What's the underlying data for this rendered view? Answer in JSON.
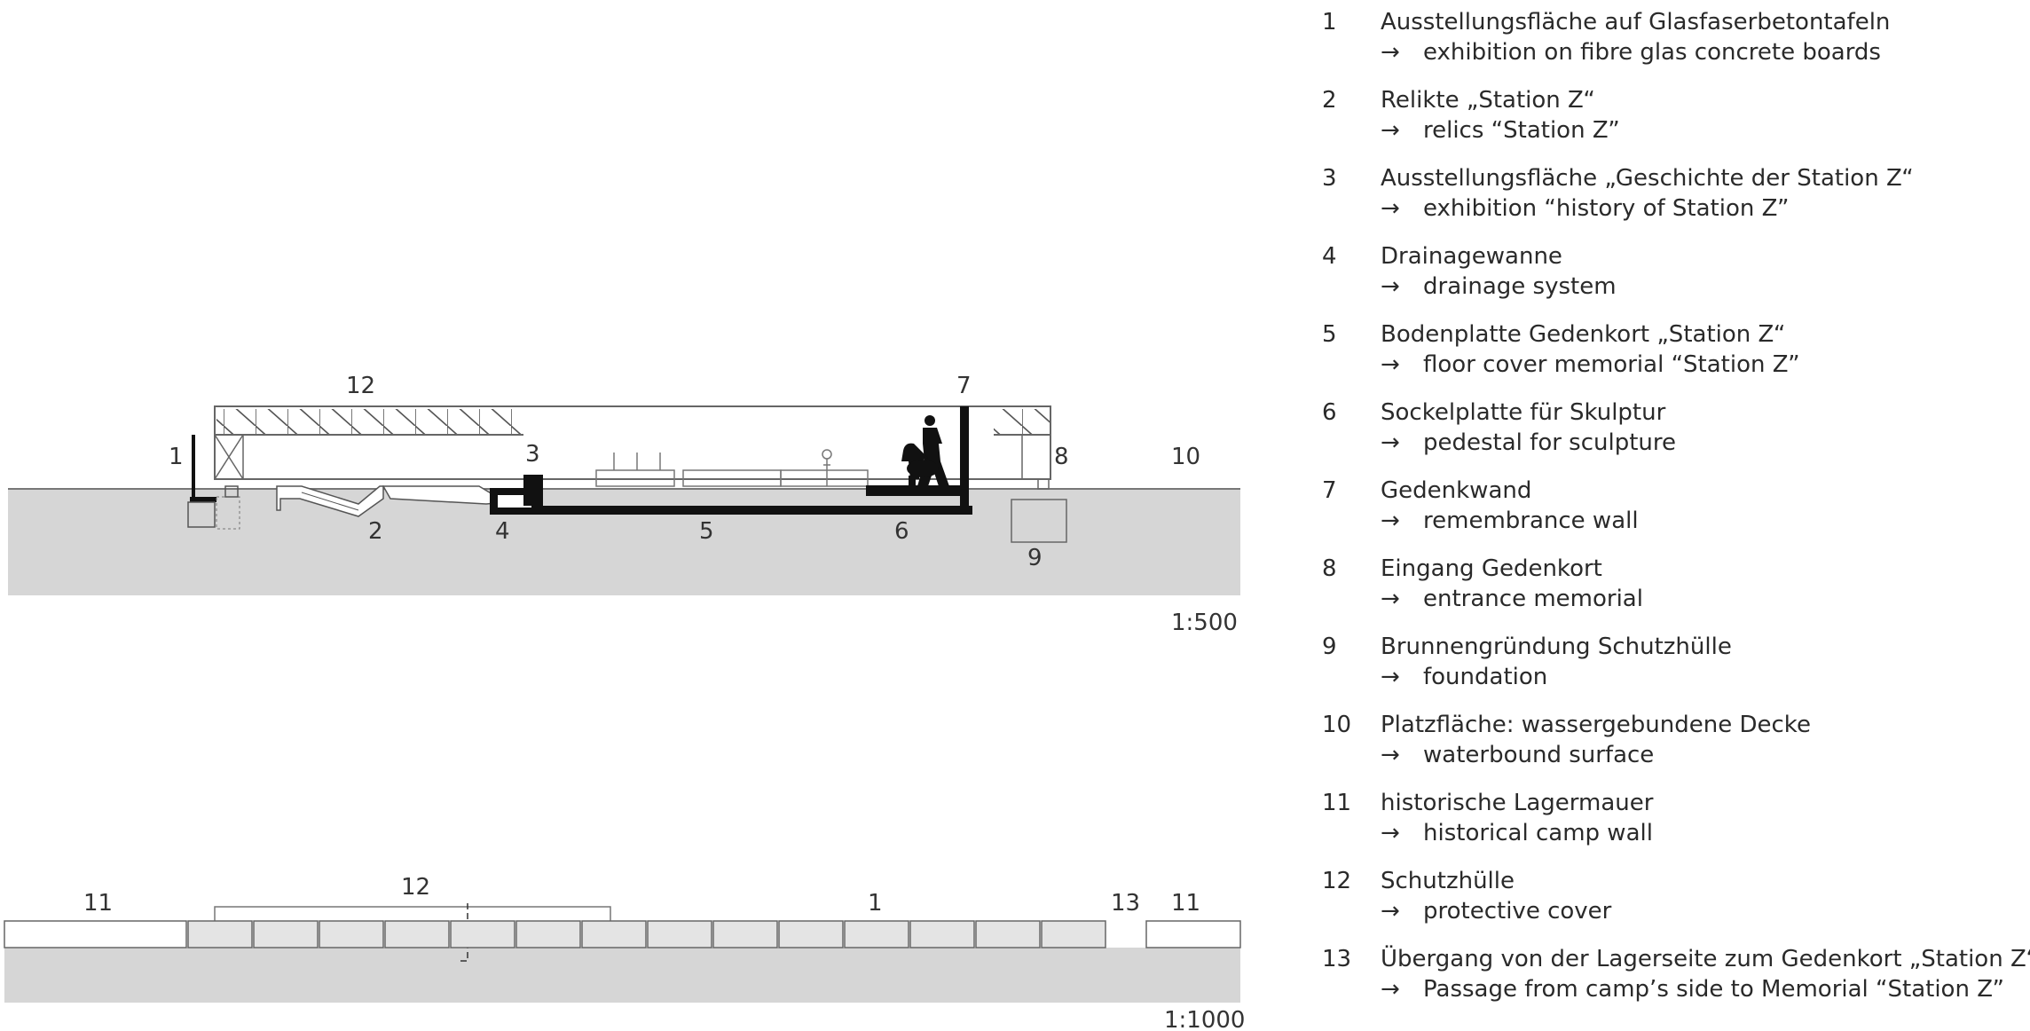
{
  "section_a": {
    "scale": "1:500",
    "callouts": {
      "c1": "1",
      "c2": "2",
      "c3": "3",
      "c4": "4",
      "c5": "5",
      "c6": "6",
      "c7": "7",
      "c8": "8",
      "c9": "9",
      "c10": "10",
      "c12": "12"
    }
  },
  "section_b": {
    "scale": "1:1000",
    "callouts": {
      "c11a": "11",
      "c12": "12",
      "c1": "1",
      "c13": "13",
      "c11b": "11"
    }
  },
  "legend": {
    "arrow": "→",
    "items": [
      {
        "num": "1",
        "de": "Ausstellungsfläche auf Glasfaserbetontafeln",
        "en": "exhibition on fibre glas concrete boards"
      },
      {
        "num": "2",
        "de": "Relikte „Station Z“",
        "en": "relics “Station Z”"
      },
      {
        "num": "3",
        "de": "Ausstellungsfläche „Geschichte der Station Z“",
        "en": "exhibition “history of Station Z”"
      },
      {
        "num": "4",
        "de": "Drainagewanne",
        "en": "drainage system"
      },
      {
        "num": "5",
        "de": "Bodenplatte Gedenkort „Station Z“",
        "en": "floor cover memorial “Station Z”"
      },
      {
        "num": "6",
        "de": "Sockelplatte für Skulptur",
        "en": "pedestal for sculpture"
      },
      {
        "num": "7",
        "de": "Gedenkwand",
        "en": "remembrance wall"
      },
      {
        "num": "8",
        "de": "Eingang Gedenkort",
        "en": "entrance memorial"
      },
      {
        "num": "9",
        "de": "Brunnengründung Schutzhülle",
        "en": "foundation"
      },
      {
        "num": "10",
        "de": "Platzfläche: wassergebundene Decke",
        "en": "waterbound surface"
      },
      {
        "num": "11",
        "de": "historische Lagermauer",
        "en": "historical camp wall"
      },
      {
        "num": "12",
        "de": "Schutzhülle",
        "en": "protective cover"
      },
      {
        "num": "13",
        "de": "Übergang von der Lagerseite zum Gedenkort „Station Z“",
        "en": "Passage from  camp’s side to Memorial “Station Z”"
      }
    ]
  }
}
